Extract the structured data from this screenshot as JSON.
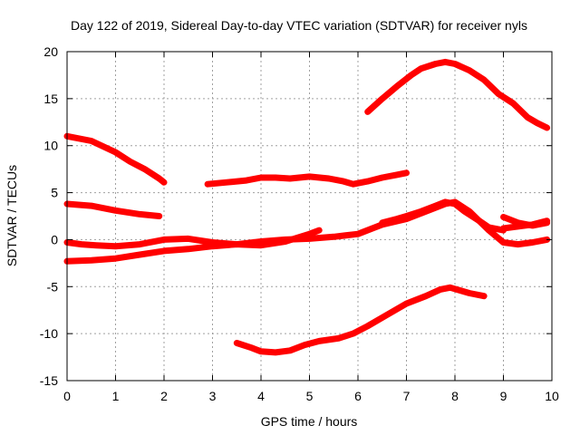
{
  "chart_data": {
    "type": "line",
    "title": "Day 122 of 2019, Sidereal Day-to-day VTEC variation (SDTVAR) for receiver nyls",
    "xlabel": "GPS time / hours",
    "ylabel": "SDTVAR / TECUs",
    "xlim": [
      0,
      10
    ],
    "ylim": [
      -15,
      20
    ],
    "xticks": [
      0,
      1,
      2,
      3,
      4,
      5,
      6,
      7,
      8,
      9,
      10
    ],
    "yticks": [
      -15,
      -10,
      -5,
      0,
      5,
      10,
      15,
      20
    ],
    "grid": true,
    "legend": "none",
    "marker": "plus",
    "color": "#ff0000",
    "series": [
      {
        "x": [
          0,
          0.5,
          1.0,
          1.3,
          1.6,
          1.9,
          2.0
        ],
        "y": [
          11.0,
          10.5,
          9.3,
          8.3,
          7.5,
          6.5,
          6.1
        ]
      },
      {
        "x": [
          0,
          0.5,
          1.0,
          1.5,
          1.9
        ],
        "y": [
          3.8,
          3.6,
          3.1,
          2.7,
          2.5
        ]
      },
      {
        "x": [
          0,
          0.3,
          0.6,
          1.0,
          1.5,
          2.0,
          2.5,
          3.0,
          3.5,
          4.0,
          4.5,
          5.0,
          5.2
        ],
        "y": [
          -0.3,
          -0.5,
          -0.6,
          -0.7,
          -0.5,
          0.0,
          0.1,
          -0.3,
          -0.5,
          -0.6,
          -0.2,
          0.6,
          1.0
        ]
      },
      {
        "x": [
          0,
          0.5,
          1.0,
          1.5,
          2.0,
          2.5,
          3.0,
          3.5,
          4.0,
          4.5,
          5.0,
          5.5,
          6.0,
          6.5,
          7.0,
          7.5,
          7.8,
          8.0,
          8.3,
          8.7,
          9.0,
          9.3,
          9.6,
          9.9
        ],
        "y": [
          -2.3,
          -2.2,
          -2.0,
          -1.6,
          -1.2,
          -1.0,
          -0.7,
          -0.5,
          -0.2,
          0.0,
          0.1,
          0.3,
          0.6,
          1.6,
          2.2,
          3.2,
          3.8,
          4.0,
          3.0,
          1.0,
          -0.3,
          -0.5,
          -0.3,
          0.0
        ]
      },
      {
        "x": [
          2.9,
          3.3,
          3.7,
          4.0,
          4.3,
          4.6,
          5.0,
          5.4,
          5.7,
          5.9,
          6.2,
          6.5,
          6.8,
          7.0
        ],
        "y": [
          5.9,
          6.1,
          6.3,
          6.6,
          6.6,
          6.5,
          6.7,
          6.5,
          6.2,
          5.9,
          6.2,
          6.6,
          6.9,
          7.1
        ]
      },
      {
        "x": [
          6.2,
          6.5,
          6.8,
          7.1,
          7.3,
          7.6,
          7.8,
          8.0,
          8.3,
          8.6,
          8.9,
          9.2,
          9.5,
          9.7,
          9.9
        ],
        "y": [
          13.6,
          15.0,
          16.3,
          17.5,
          18.2,
          18.7,
          18.9,
          18.7,
          18.0,
          17.0,
          15.5,
          14.5,
          13.0,
          12.4,
          11.9
        ]
      },
      {
        "x": [
          6.5,
          6.8,
          7.0,
          7.3,
          7.6,
          7.8,
          8.0,
          8.2,
          8.5,
          8.7,
          9.0
        ],
        "y": [
          1.8,
          2.2,
          2.5,
          3.0,
          3.6,
          4.0,
          3.8,
          3.0,
          2.0,
          1.3,
          1.0
        ]
      },
      {
        "x": [
          9.0,
          9.3,
          9.6,
          9.9
        ],
        "y": [
          2.4,
          1.8,
          1.5,
          1.8
        ]
      },
      {
        "x": [
          9.0,
          9.3,
          9.6,
          9.9
        ],
        "y": [
          1.2,
          1.4,
          1.6,
          2.0
        ]
      },
      {
        "x": [
          3.5,
          3.8,
          4.0,
          4.3,
          4.6,
          4.9,
          5.2,
          5.6,
          5.9,
          6.2,
          6.6,
          7.0,
          7.4,
          7.7,
          7.9,
          8.1,
          8.3,
          8.6
        ],
        "y": [
          -11.0,
          -11.5,
          -11.9,
          -12.0,
          -11.8,
          -11.2,
          -10.8,
          -10.5,
          -10.0,
          -9.2,
          -8.0,
          -6.8,
          -6.0,
          -5.3,
          -5.1,
          -5.4,
          -5.7,
          -6.0
        ]
      }
    ]
  }
}
